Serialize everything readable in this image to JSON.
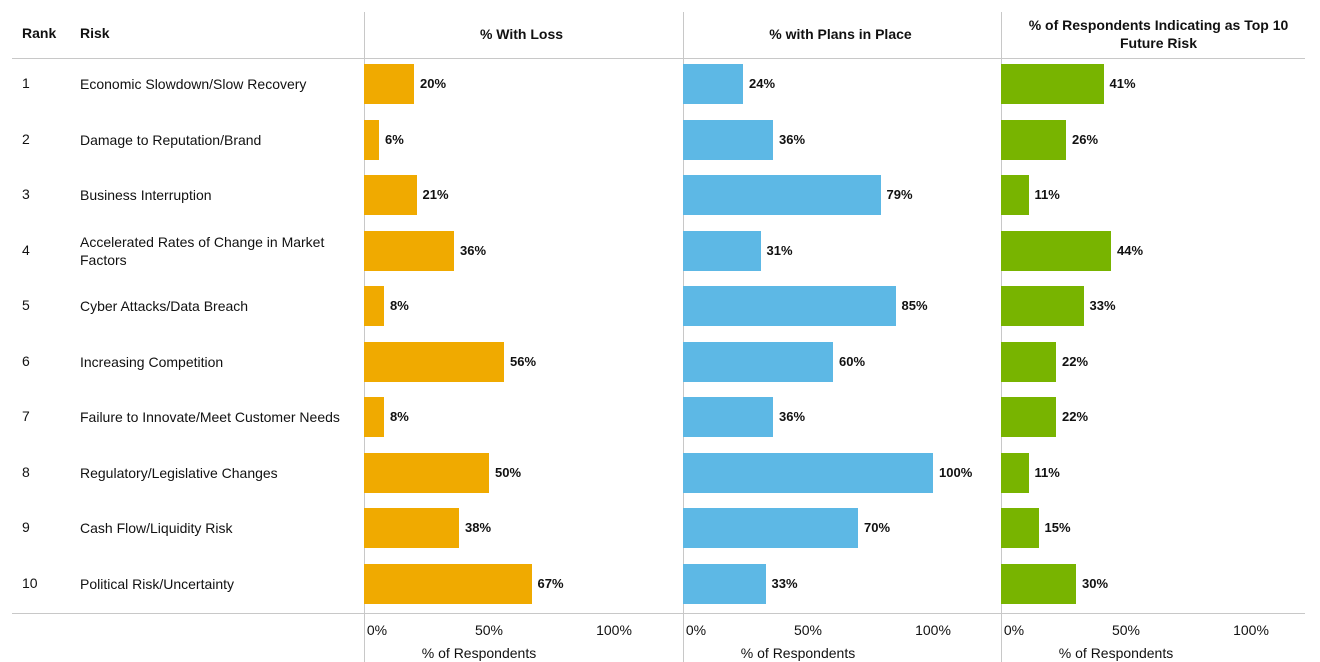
{
  "table": {
    "headers": [
      "Rank",
      "Risk"
    ],
    "rows": [
      {
        "rank": 1,
        "risk": "Economic Slowdown/Slow Recovery"
      },
      {
        "rank": 2,
        "risk": "Damage to Reputation/Brand"
      },
      {
        "rank": 3,
        "risk": "Business Interruption"
      },
      {
        "rank": 4,
        "risk": "Accelerated Rates of Change in Market Factors"
      },
      {
        "rank": 5,
        "risk": "Cyber Attacks/Data Breach"
      },
      {
        "rank": 6,
        "risk": "Increasing Competition"
      },
      {
        "rank": 7,
        "risk": "Failure to Innovate/Meet Customer Needs"
      },
      {
        "rank": 8,
        "risk": "Regulatory/Legislative Changes"
      },
      {
        "rank": 9,
        "risk": "Cash Flow/Liquidity Risk"
      },
      {
        "rank": 10,
        "risk": "Political Risk/Uncertainty"
      }
    ]
  },
  "chart_data": [
    {
      "type": "bar",
      "orientation": "horizontal",
      "title": "% With Loss",
      "color": "#f0aa00",
      "values": [
        20,
        6,
        21,
        36,
        8,
        56,
        8,
        50,
        38,
        67
      ],
      "value_labels": [
        "20%",
        "6%",
        "21%",
        "36%",
        "8%",
        "56%",
        "8%",
        "50%",
        "38%",
        "67%"
      ],
      "xlim": [
        0,
        100
      ],
      "xticks": [
        {
          "value": 0,
          "label": "0%"
        },
        {
          "value": 50,
          "label": "50%"
        },
        {
          "value": 100,
          "label": "100%"
        }
      ],
      "x_label": "% of Respondents"
    },
    {
      "type": "bar",
      "orientation": "horizontal",
      "title": "% with Plans in Place",
      "color": "#5db8e5",
      "values": [
        24,
        36,
        79,
        31,
        85,
        60,
        36,
        100,
        70,
        33
      ],
      "value_labels": [
        "24%",
        "36%",
        "79%",
        "31%",
        "85%",
        "60%",
        "36%",
        "100%",
        "70%",
        "33%"
      ],
      "xlim": [
        0,
        100
      ],
      "xticks": [
        {
          "value": 0,
          "label": "0%"
        },
        {
          "value": 50,
          "label": "50%"
        },
        {
          "value": 100,
          "label": "100%"
        }
      ],
      "x_label": "% of Respondents"
    },
    {
      "type": "bar",
      "orientation": "horizontal",
      "title": "% of Respondents Indicating as Top 10 Future Risk",
      "color": "#78b400",
      "values": [
        41,
        26,
        11,
        44,
        33,
        22,
        22,
        11,
        15,
        30
      ],
      "value_labels": [
        "41%",
        "26%",
        "11%",
        "44%",
        "33%",
        "22%",
        "22%",
        "11%",
        "15%",
        "30%"
      ],
      "xlim": [
        0,
        100
      ],
      "xticks": [
        {
          "value": 0,
          "label": "0%"
        },
        {
          "value": 50,
          "label": "50%"
        },
        {
          "value": 100,
          "label": "100%"
        }
      ],
      "x_label": "% of Respondents"
    }
  ]
}
